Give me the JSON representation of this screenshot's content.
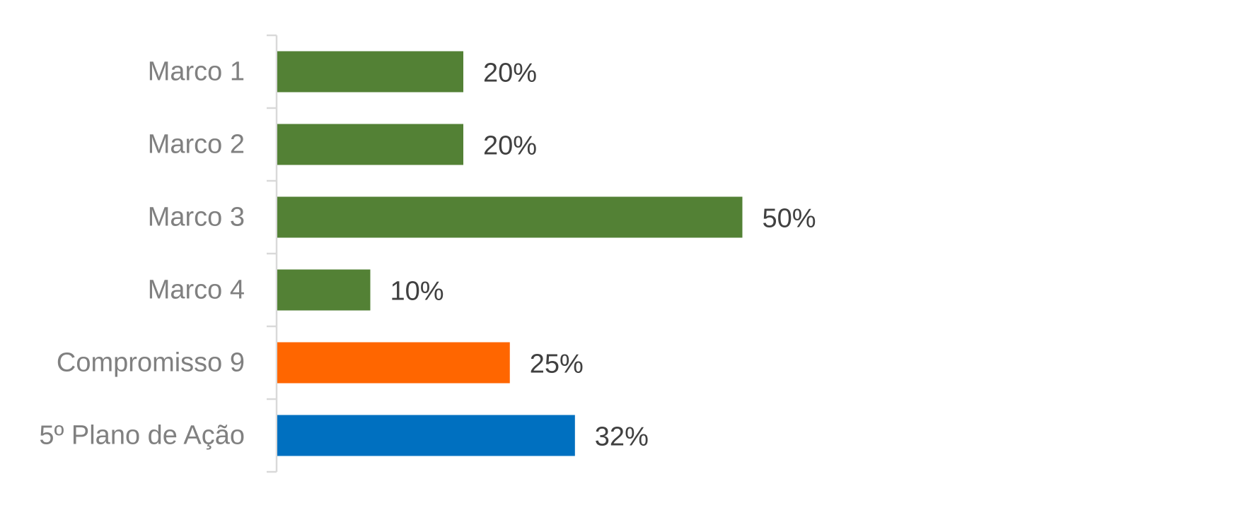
{
  "chart_data": {
    "type": "bar",
    "orientation": "horizontal",
    "categories": [
      "Marco 1",
      "Marco 2",
      "Marco 3",
      "Marco 4",
      "Compromisso 9",
      "5º Plano de Ação"
    ],
    "values": [
      20,
      20,
      50,
      10,
      25,
      32
    ],
    "value_labels": [
      "20%",
      "20%",
      "50%",
      "10%",
      "25%",
      "32%"
    ],
    "colors": [
      "#538135",
      "#538135",
      "#538135",
      "#538135",
      "#ff6600",
      "#0070c0"
    ],
    "xlim": [
      0,
      100
    ],
    "grid": false,
    "legend": "none"
  }
}
